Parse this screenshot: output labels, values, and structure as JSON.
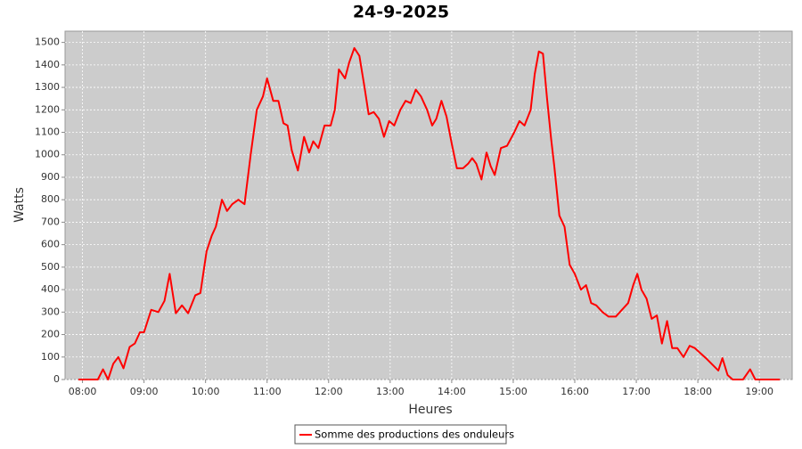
{
  "chart_data": {
    "type": "line",
    "title": "24-9-2025",
    "xlabel": "Heures",
    "ylabel": "Watts",
    "x": [
      "07:56",
      "08:10",
      "08:15",
      "08:20",
      "08:25",
      "08:30",
      "08:35",
      "08:40",
      "08:46",
      "08:51",
      "08:56",
      "09:00",
      "09:07",
      "09:14",
      "09:20",
      "09:25",
      "09:31",
      "09:37",
      "09:43",
      "09:50",
      "09:55",
      "10:01",
      "10:06",
      "10:10",
      "10:16",
      "10:21",
      "10:26",
      "10:32",
      "10:38",
      "10:44",
      "10:50",
      "10:56",
      "11:00",
      "11:06",
      "11:11",
      "11:16",
      "11:20",
      "11:24",
      "11:30",
      "11:36",
      "11:41",
      "11:45",
      "11:50",
      "11:56",
      "12:02",
      "12:06",
      "12:10",
      "12:16",
      "12:20",
      "12:25",
      "12:30",
      "12:35",
      "12:39",
      "12:44",
      "12:49",
      "12:54",
      "12:59",
      "13:04",
      "13:10",
      "13:15",
      "13:20",
      "13:25",
      "13:30",
      "13:36",
      "13:41",
      "13:45",
      "13:50",
      "13:55",
      "14:00",
      "14:05",
      "14:11",
      "14:16",
      "14:20",
      "14:24",
      "14:29",
      "14:34",
      "14:38",
      "14:42",
      "14:48",
      "14:54",
      "15:01",
      "15:06",
      "15:11",
      "15:17",
      "15:21",
      "15:25",
      "15:29",
      "15:33",
      "15:37",
      "15:40",
      "15:45",
      "15:50",
      "15:55",
      "16:00",
      "16:06",
      "16:11",
      "16:16",
      "16:21",
      "16:27",
      "16:33",
      "16:40",
      "16:46",
      "16:52",
      "16:57",
      "17:01",
      "17:05",
      "17:10",
      "17:15",
      "17:20",
      "17:25",
      "17:30",
      "17:35",
      "17:40",
      "17:46",
      "17:52",
      "17:57",
      "18:09",
      "18:20",
      "18:24",
      "18:29",
      "18:34",
      "18:44",
      "18:51",
      "18:56",
      "19:20"
    ],
    "series": [
      {
        "name": "Somme des productions des onduleurs",
        "color": "#ff0000",
        "values": [
          0,
          0,
          0,
          45,
          0,
          70,
          100,
          50,
          145,
          160,
          210,
          210,
          310,
          300,
          350,
          470,
          295,
          330,
          295,
          375,
          385,
          570,
          640,
          680,
          800,
          750,
          780,
          800,
          780,
          1000,
          1200,
          1260,
          1340,
          1240,
          1240,
          1140,
          1130,
          1020,
          930,
          1080,
          1010,
          1060,
          1030,
          1130,
          1130,
          1200,
          1380,
          1340,
          1410,
          1475,
          1440,
          1300,
          1180,
          1190,
          1160,
          1080,
          1150,
          1130,
          1200,
          1240,
          1230,
          1290,
          1260,
          1200,
          1130,
          1160,
          1240,
          1170,
          1050,
          940,
          940,
          960,
          985,
          960,
          890,
          1010,
          950,
          910,
          1030,
          1040,
          1100,
          1150,
          1130,
          1200,
          1360,
          1460,
          1450,
          1250,
          1070,
          950,
          730,
          680,
          510,
          470,
          400,
          420,
          340,
          330,
          300,
          280,
          280,
          310,
          340,
          420,
          470,
          400,
          360,
          270,
          285,
          160,
          260,
          140,
          140,
          100,
          150,
          140,
          90,
          40,
          95,
          20,
          0,
          0,
          45,
          0,
          0
        ]
      }
    ],
    "xlim": [
      "07:43",
      "19:32"
    ],
    "xticks": [
      "08:00",
      "09:00",
      "10:00",
      "11:00",
      "12:00",
      "13:00",
      "14:00",
      "15:00",
      "16:00",
      "17:00",
      "18:00",
      "19:00"
    ],
    "ylim": [
      0,
      1550
    ],
    "yticks": [
      0,
      100,
      200,
      300,
      400,
      500,
      600,
      700,
      800,
      900,
      1000,
      1100,
      1200,
      1300,
      1400,
      1500
    ],
    "grid": true
  }
}
